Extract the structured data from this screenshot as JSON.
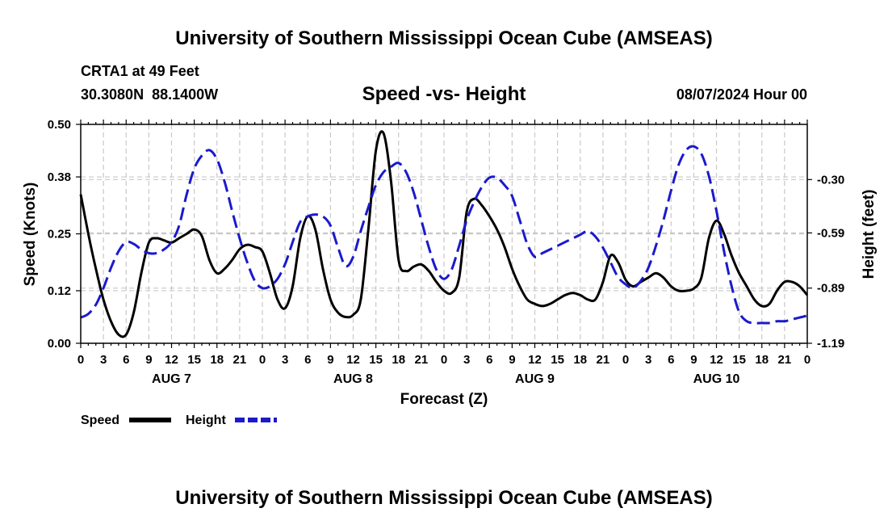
{
  "header": {
    "title": "University of Southern Mississippi Ocean Cube (AMSEAS)",
    "station": "CRTA1 at 49 Feet",
    "coords": "30.3080N  88.1400W",
    "subtitle": "Speed -vs- Height",
    "datetime": "08/07/2024 Hour 00"
  },
  "footer": {
    "title": "University of Southern Mississippi Ocean Cube (AMSEAS)"
  },
  "legend": {
    "speed_label": "Speed",
    "height_label": "Height"
  },
  "colors": {
    "speed": "#000000",
    "height": "#1a1acc",
    "grid": "#c8c8c8"
  },
  "chart_data": {
    "type": "line",
    "title": "Speed -vs- Height",
    "xlabel": "Forecast (Z)",
    "ylabel_left": "Speed (Knots)",
    "ylabel_right": "Height (feet)",
    "x_hours_range": [
      0,
      96
    ],
    "ylim_left": [
      0,
      0.5
    ],
    "ylim_right": [
      -1.19,
      0.0
    ],
    "left_ticks": [
      "0.00",
      "0.12",
      "0.25",
      "0.38",
      "0.50"
    ],
    "right_ticks": [
      {
        "label": "-1.19",
        "value": -1.19
      },
      {
        "label": "-0.89",
        "value": -0.89
      },
      {
        "label": "-0.59",
        "value": -0.59
      },
      {
        "label": "-0.30",
        "value": -0.3
      }
    ],
    "x_tick_labels": [
      "0",
      "3",
      "6",
      "9",
      "12",
      "15",
      "18",
      "21",
      "0",
      "3",
      "6",
      "9",
      "12",
      "15",
      "18",
      "21",
      "0",
      "3",
      "6",
      "9",
      "12",
      "15",
      "18",
      "21",
      "0",
      "3",
      "6",
      "9",
      "12",
      "15",
      "18",
      "21",
      "0"
    ],
    "day_labels": [
      {
        "label": "AUG 7",
        "hour": 12
      },
      {
        "label": "AUG 8",
        "hour": 36
      },
      {
        "label": "AUG 9",
        "hour": 60
      },
      {
        "label": "AUG 10",
        "hour": 84
      }
    ],
    "series": [
      {
        "name": "Speed",
        "axis": "left",
        "style": "solid",
        "points": [
          [
            0,
            0.34
          ],
          [
            1,
            0.25
          ],
          [
            2,
            0.17
          ],
          [
            3,
            0.1
          ],
          [
            4,
            0.05
          ],
          [
            5,
            0.02
          ],
          [
            6,
            0.02
          ],
          [
            7,
            0.07
          ],
          [
            8,
            0.16
          ],
          [
            9,
            0.23
          ],
          [
            10,
            0.24
          ],
          [
            11,
            0.235
          ],
          [
            12,
            0.23
          ],
          [
            13,
            0.24
          ],
          [
            14,
            0.25
          ],
          [
            15,
            0.26
          ],
          [
            16,
            0.245
          ],
          [
            17,
            0.19
          ],
          [
            18,
            0.16
          ],
          [
            19,
            0.17
          ],
          [
            20,
            0.19
          ],
          [
            21,
            0.215
          ],
          [
            22,
            0.225
          ],
          [
            23,
            0.22
          ],
          [
            24,
            0.21
          ],
          [
            25,
            0.16
          ],
          [
            26,
            0.1
          ],
          [
            27,
            0.08
          ],
          [
            28,
            0.13
          ],
          [
            29,
            0.24
          ],
          [
            30,
            0.29
          ],
          [
            31,
            0.26
          ],
          [
            32,
            0.17
          ],
          [
            33,
            0.1
          ],
          [
            34,
            0.07
          ],
          [
            35,
            0.06
          ],
          [
            36,
            0.065
          ],
          [
            37,
            0.1
          ],
          [
            38,
            0.26
          ],
          [
            39,
            0.44
          ],
          [
            40,
            0.48
          ],
          [
            41,
            0.37
          ],
          [
            42,
            0.19
          ],
          [
            43,
            0.165
          ],
          [
            44,
            0.175
          ],
          [
            45,
            0.18
          ],
          [
            46,
            0.165
          ],
          [
            47,
            0.14
          ],
          [
            48,
            0.12
          ],
          [
            49,
            0.115
          ],
          [
            50,
            0.15
          ],
          [
            51,
            0.3
          ],
          [
            52,
            0.33
          ],
          [
            53,
            0.315
          ],
          [
            54,
            0.29
          ],
          [
            55,
            0.26
          ],
          [
            56,
            0.22
          ],
          [
            57,
            0.17
          ],
          [
            58,
            0.13
          ],
          [
            59,
            0.1
          ],
          [
            60,
            0.09
          ],
          [
            61,
            0.085
          ],
          [
            62,
            0.09
          ],
          [
            63,
            0.1
          ],
          [
            64,
            0.11
          ],
          [
            65,
            0.115
          ],
          [
            66,
            0.11
          ],
          [
            67,
            0.1
          ],
          [
            68,
            0.1
          ],
          [
            69,
            0.14
          ],
          [
            70,
            0.2
          ],
          [
            71,
            0.185
          ],
          [
            72,
            0.145
          ],
          [
            73,
            0.13
          ],
          [
            74,
            0.14
          ],
          [
            75,
            0.15
          ],
          [
            76,
            0.16
          ],
          [
            77,
            0.15
          ],
          [
            78,
            0.13
          ],
          [
            79,
            0.12
          ],
          [
            80,
            0.12
          ],
          [
            81,
            0.125
          ],
          [
            82,
            0.15
          ],
          [
            83,
            0.24
          ],
          [
            84,
            0.28
          ],
          [
            85,
            0.25
          ],
          [
            86,
            0.2
          ],
          [
            87,
            0.16
          ],
          [
            88,
            0.13
          ],
          [
            89,
            0.1
          ],
          [
            90,
            0.085
          ],
          [
            91,
            0.09
          ],
          [
            92,
            0.12
          ],
          [
            93,
            0.14
          ],
          [
            94,
            0.14
          ],
          [
            95,
            0.13
          ],
          [
            96,
            0.11
          ]
        ]
      },
      {
        "name": "Height",
        "axis": "right",
        "style": "dashed",
        "points": [
          [
            0,
            -1.05
          ],
          [
            1,
            -1.03
          ],
          [
            2,
            -0.98
          ],
          [
            3,
            -0.89
          ],
          [
            4,
            -0.78
          ],
          [
            5,
            -0.69
          ],
          [
            6,
            -0.64
          ],
          [
            7,
            -0.65
          ],
          [
            8,
            -0.68
          ],
          [
            9,
            -0.7
          ],
          [
            10,
            -0.7
          ],
          [
            11,
            -0.68
          ],
          [
            12,
            -0.64
          ],
          [
            13,
            -0.55
          ],
          [
            14,
            -0.38
          ],
          [
            15,
            -0.24
          ],
          [
            16,
            -0.17
          ],
          [
            17,
            -0.14
          ],
          [
            18,
            -0.19
          ],
          [
            19,
            -0.31
          ],
          [
            20,
            -0.47
          ],
          [
            21,
            -0.62
          ],
          [
            22,
            -0.75
          ],
          [
            23,
            -0.85
          ],
          [
            24,
            -0.89
          ],
          [
            25,
            -0.88
          ],
          [
            26,
            -0.84
          ],
          [
            27,
            -0.76
          ],
          [
            28,
            -0.64
          ],
          [
            29,
            -0.53
          ],
          [
            30,
            -0.5
          ],
          [
            31,
            -0.49
          ],
          [
            32,
            -0.5
          ],
          [
            33,
            -0.55
          ],
          [
            34,
            -0.67
          ],
          [
            35,
            -0.77
          ],
          [
            36,
            -0.72
          ],
          [
            37,
            -0.58
          ],
          [
            38,
            -0.45
          ],
          [
            39,
            -0.33
          ],
          [
            40,
            -0.26
          ],
          [
            41,
            -0.23
          ],
          [
            42,
            -0.21
          ],
          [
            43,
            -0.26
          ],
          [
            44,
            -0.37
          ],
          [
            45,
            -0.52
          ],
          [
            46,
            -0.67
          ],
          [
            47,
            -0.79
          ],
          [
            48,
            -0.84
          ],
          [
            49,
            -0.79
          ],
          [
            50,
            -0.66
          ],
          [
            51,
            -0.52
          ],
          [
            52,
            -0.42
          ],
          [
            53,
            -0.34
          ],
          [
            54,
            -0.29
          ],
          [
            55,
            -0.29
          ],
          [
            56,
            -0.33
          ],
          [
            57,
            -0.39
          ],
          [
            58,
            -0.52
          ],
          [
            59,
            -0.65
          ],
          [
            60,
            -0.72
          ],
          [
            61,
            -0.7
          ],
          [
            62,
            -0.68
          ],
          [
            63,
            -0.66
          ],
          [
            64,
            -0.64
          ],
          [
            65,
            -0.62
          ],
          [
            66,
            -0.6
          ],
          [
            67,
            -0.58
          ],
          [
            68,
            -0.61
          ],
          [
            69,
            -0.67
          ],
          [
            70,
            -0.75
          ],
          [
            71,
            -0.83
          ],
          [
            72,
            -0.87
          ],
          [
            73,
            -0.89
          ],
          [
            74,
            -0.85
          ],
          [
            75,
            -0.78
          ],
          [
            76,
            -0.66
          ],
          [
            77,
            -0.52
          ],
          [
            78,
            -0.36
          ],
          [
            79,
            -0.22
          ],
          [
            80,
            -0.14
          ],
          [
            81,
            -0.12
          ],
          [
            82,
            -0.16
          ],
          [
            83,
            -0.28
          ],
          [
            84,
            -0.47
          ],
          [
            85,
            -0.69
          ],
          [
            86,
            -0.88
          ],
          [
            87,
            -1.02
          ],
          [
            88,
            -1.07
          ],
          [
            89,
            -1.08
          ],
          [
            90,
            -1.08
          ],
          [
            91,
            -1.08
          ],
          [
            92,
            -1.07
          ],
          [
            93,
            -1.07
          ],
          [
            94,
            -1.06
          ],
          [
            95,
            -1.05
          ],
          [
            96,
            -1.04
          ]
        ]
      }
    ]
  }
}
